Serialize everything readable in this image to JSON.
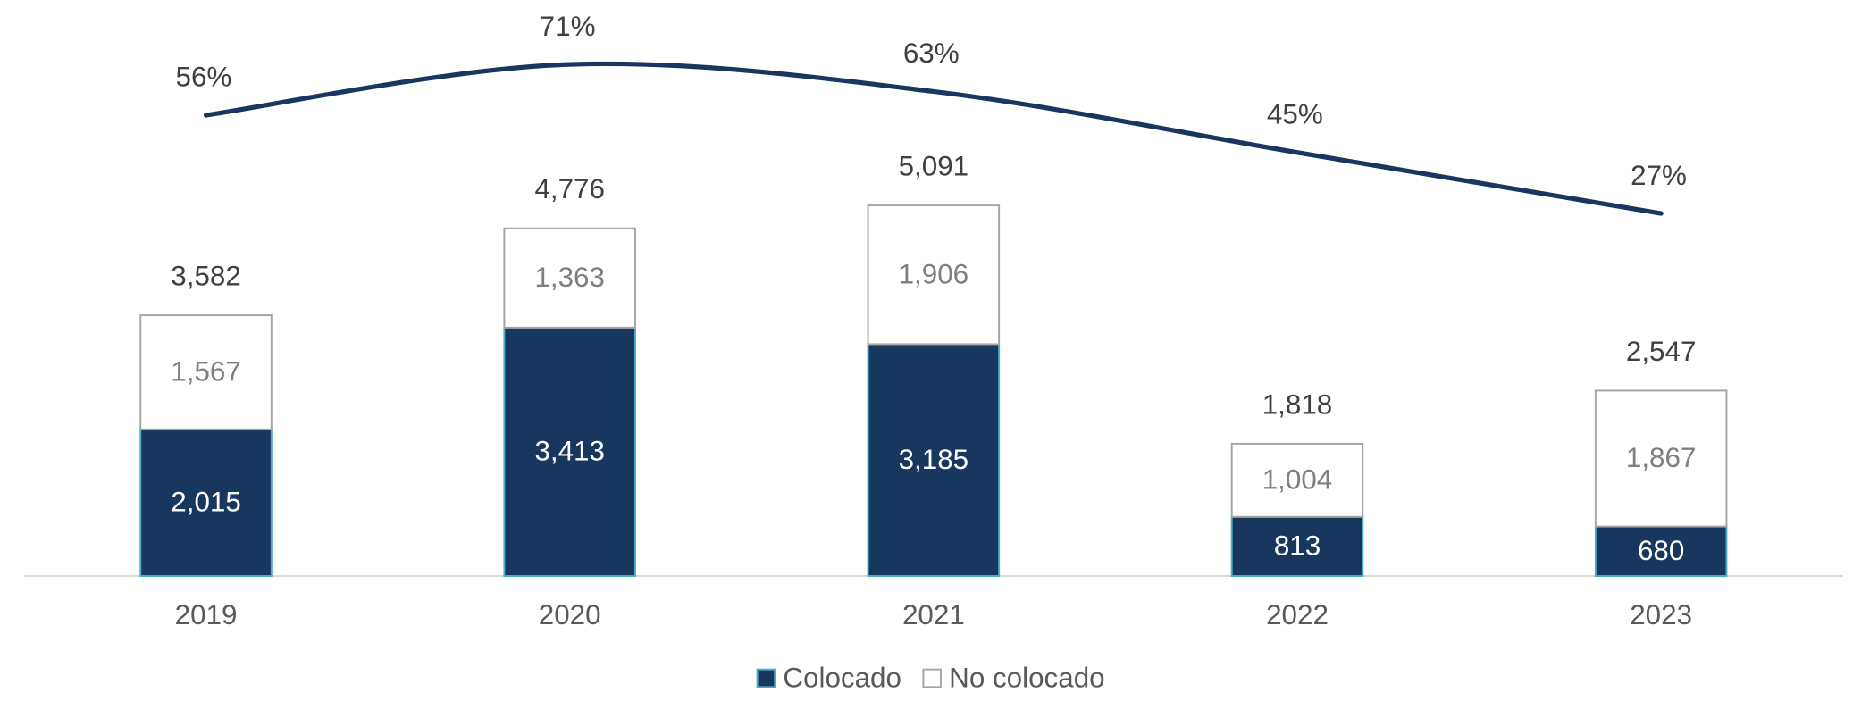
{
  "chart_data": {
    "type": "bar",
    "stacked": true,
    "categories": [
      "2019",
      "2020",
      "2021",
      "2022",
      "2023"
    ],
    "series": [
      {
        "name": "Colocado",
        "color": "#17375e",
        "border": "#4bacc6",
        "label_color": "#ffffff",
        "values": [
          2015,
          3413,
          3185,
          813,
          680
        ],
        "value_labels": [
          "2,015",
          "3,413",
          "3,185",
          "813",
          "680"
        ]
      },
      {
        "name": "No colocado",
        "color": "#ffffff",
        "border": "#a6a6a6",
        "label_color": "#7f7f7f",
        "values": [
          1567,
          1363,
          1906,
          1004,
          1867
        ],
        "value_labels": [
          "1,567",
          "1,363",
          "1,906",
          "1,004",
          "1,867"
        ]
      },
      {
        "type": "line",
        "axis": "y2",
        "color": "#17375e",
        "label_color": "#404040",
        "values": [
          56,
          71,
          63,
          45,
          27
        ],
        "value_labels": [
          "56%",
          "71%",
          "63%",
          "45%",
          "27%"
        ]
      }
    ],
    "totals": [
      3582,
      4776,
      5091,
      1818,
      2547
    ],
    "total_labels": [
      "3,582",
      "4,776",
      "5,091",
      "1,818",
      "2,547"
    ],
    "ylim": [
      0,
      7914
    ],
    "y2lim": [
      -80,
      90
    ],
    "legend": "bottom"
  }
}
